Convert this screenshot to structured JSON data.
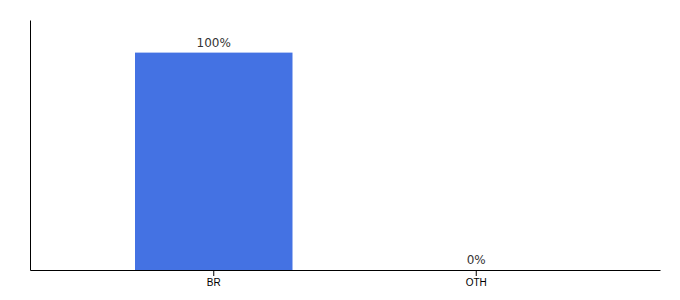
{
  "chart_data": {
    "type": "bar",
    "categories": [
      "BR",
      "OTH"
    ],
    "values": [
      100,
      0
    ],
    "value_labels": [
      "100%",
      "0%"
    ],
    "data_labels": true,
    "color": "#4472e3",
    "ylim": [
      0,
      115
    ],
    "tick_labels": "x"
  }
}
